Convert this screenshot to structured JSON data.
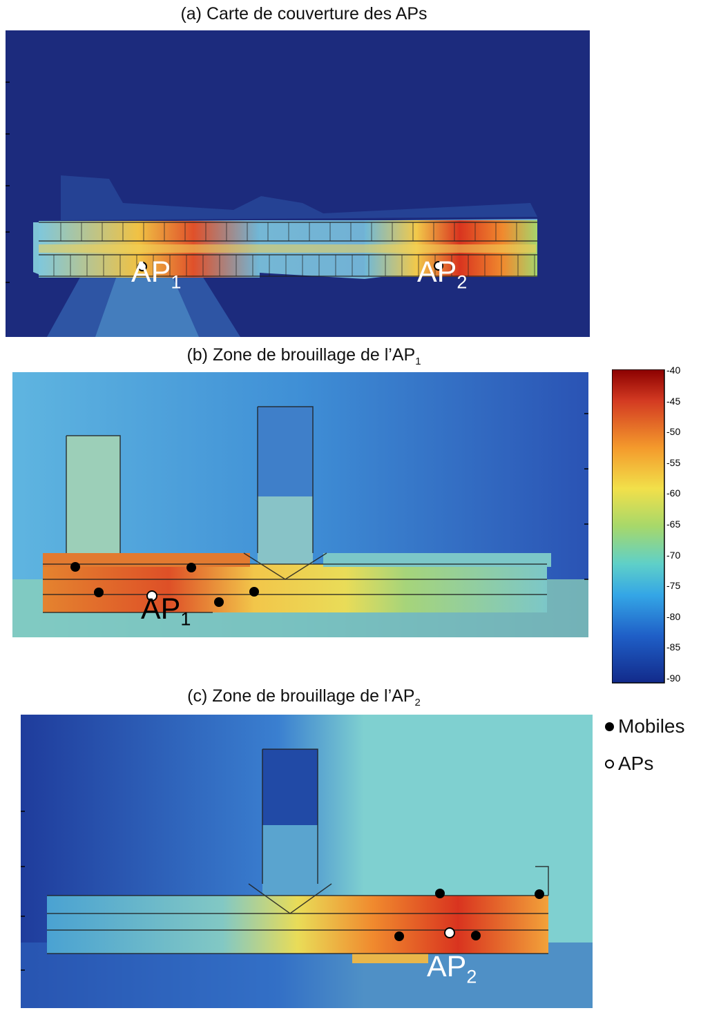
{
  "panels": [
    {
      "caption_main": "(a) Carte de couverture des APs",
      "caption_sub": ""
    },
    {
      "caption_main": "(b) Zone de brouillage de l’AP",
      "caption_sub": "1"
    },
    {
      "caption_main": "(c) Zone de brouillage de l’AP",
      "caption_sub": "2"
    }
  ],
  "ap_labels": {
    "ap1_a": {
      "main": "AP",
      "sub": "1"
    },
    "ap2_a": {
      "main": "AP",
      "sub": "2"
    },
    "ap1_b": {
      "main": "AP",
      "sub": "1"
    },
    "ap2_c": {
      "main": "AP",
      "sub": "2"
    }
  },
  "colorbar": {
    "ticks": [
      "-40",
      "-45",
      "-50",
      "-55",
      "-60",
      "-65",
      "-70",
      "-75",
      "-80",
      "-85",
      "-90"
    ],
    "colors": [
      "#8b0000",
      "#d93a1e",
      "#f59a2a",
      "#f2e24a",
      "#a8d86a",
      "#5fd0c8",
      "#35a7e6",
      "#1f5fc7",
      "#122a8a"
    ]
  },
  "legend": {
    "mobiles": "Mobiles",
    "aps": "APs"
  },
  "colors": {
    "background_dark": "#1b2a7a",
    "hot": "#d9341f",
    "cyan": "#6ecbd5"
  }
}
